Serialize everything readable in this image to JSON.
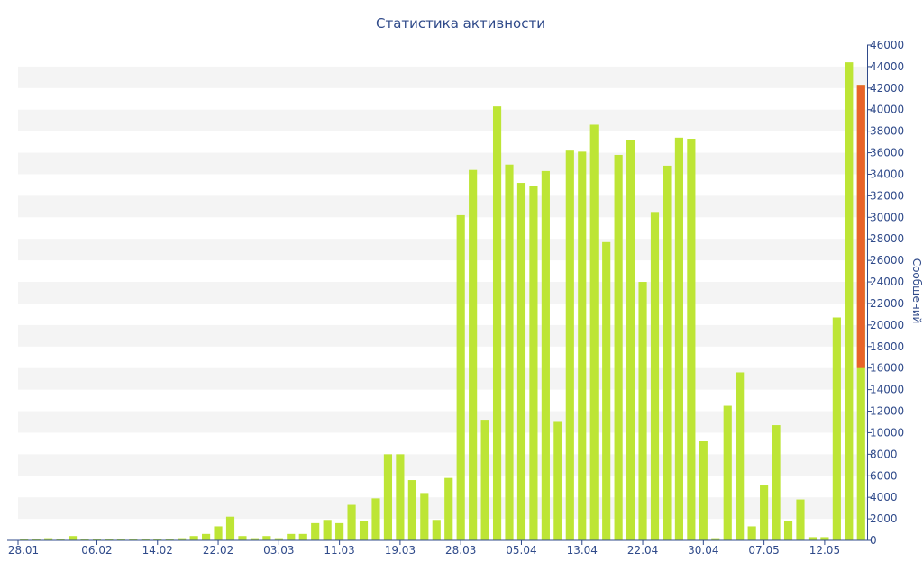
{
  "chart_data": {
    "type": "bar",
    "title": "Статистика активности",
    "xlabel": "",
    "ylabel": "Сообщений",
    "ylim": [
      0,
      46000
    ],
    "ytick_step": 2000,
    "y_axis_side": "right",
    "grid": "alternating horizontal bands",
    "colors": {
      "bar": "#bde535",
      "highlight": "#e8632a",
      "axis": "#2f4a8a",
      "band": "#f4f4f4",
      "title": "#2f4a8a"
    },
    "x_tick_labels": [
      "28.01",
      "06.02",
      "14.02",
      "22.02",
      "03.03",
      "11.03",
      "19.03",
      "28.03",
      "05.04",
      "13.04",
      "22.04",
      "30.04",
      "07.05",
      "12.05"
    ],
    "x_tick_positions": [
      0,
      6,
      11,
      16,
      21,
      26,
      31,
      36,
      41,
      46,
      51,
      56,
      61,
      66
    ],
    "values": [
      100,
      100,
      200,
      100,
      400,
      100,
      100,
      100,
      100,
      100,
      100,
      100,
      100,
      200,
      400,
      600,
      1300,
      2200,
      400,
      200,
      400,
      200,
      600,
      600,
      1600,
      1900,
      1600,
      3300,
      1800,
      3900,
      8000,
      8000,
      5600,
      4400,
      1900,
      5800,
      30200,
      34400,
      11200,
      40300,
      34900,
      33200,
      32900,
      34300,
      11000,
      36200,
      36100,
      38600,
      27700,
      35800,
      37200,
      24000,
      30500,
      34800,
      37400,
      37300,
      9200,
      200,
      12500,
      15600,
      1300,
      5100,
      10700,
      1800,
      3800,
      300,
      300,
      20700,
      44400,
      42300
    ],
    "highlight": {
      "index": 69,
      "low": 16000,
      "high": 42300
    }
  }
}
